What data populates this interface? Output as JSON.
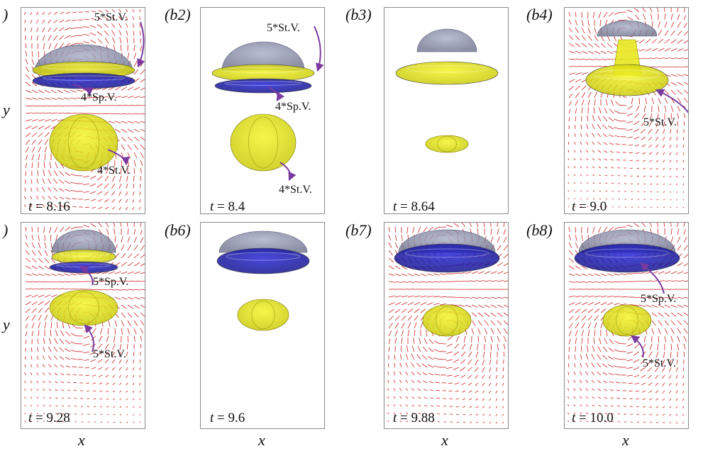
{
  "colors": {
    "vector": "#cc2020",
    "arrow": "#7a3aa0",
    "yellow": "#f2f21a",
    "blue": "#2020cc",
    "grey": "#9aa0c0"
  },
  "panels": [
    {
      "label": ")",
      "t": "8.16",
      "annotations": [
        "5*St.V.",
        "4*Sp.V.",
        "4*St.V."
      ]
    },
    {
      "label": "(b2)",
      "t": "8.4",
      "annotations": [
        "5*St.V.",
        "4*Sp.V.",
        "4*St.V."
      ]
    },
    {
      "label": "(b3)",
      "t": "8.64",
      "annotations": []
    },
    {
      "label": "(b4)",
      "t": "9.0",
      "annotations": [
        "5*St.V."
      ]
    },
    {
      "label": ")",
      "t": "9.28",
      "annotations": [
        "5*Sp.V.",
        "5*St.V."
      ]
    },
    {
      "label": "(b6)",
      "t": "9.6",
      "annotations": []
    },
    {
      "label": "(b7)",
      "t": "9.88",
      "annotations": []
    },
    {
      "label": "(b8)",
      "t": "10.0",
      "annotations": [
        "5*Sp.V.",
        "5*St.V."
      ]
    }
  ],
  "axes": {
    "x": "x",
    "y": "y",
    "t_symbol": "t",
    "equals": " = "
  }
}
